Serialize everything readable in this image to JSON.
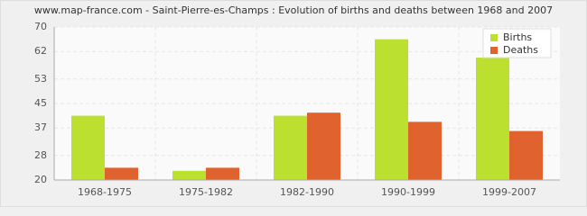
{
  "chart_data": {
    "type": "bar",
    "title": "www.map-france.com - Saint-Pierre-es-Champs : Evolution of births and deaths between 1968 and 2007",
    "categories": [
      "1968-1975",
      "1975-1982",
      "1982-1990",
      "1990-1999",
      "1999-2007"
    ],
    "series": [
      {
        "name": "Births",
        "color": "#bbe02f",
        "values": [
          41,
          23,
          41,
          66,
          60
        ]
      },
      {
        "name": "Deaths",
        "color": "#e0622f",
        "values": [
          24,
          24,
          42,
          39,
          36
        ]
      }
    ],
    "ylim": [
      20,
      70
    ],
    "yticks": [
      20,
      28,
      37,
      45,
      53,
      62,
      70
    ],
    "grid": true,
    "legend": "top-right"
  }
}
